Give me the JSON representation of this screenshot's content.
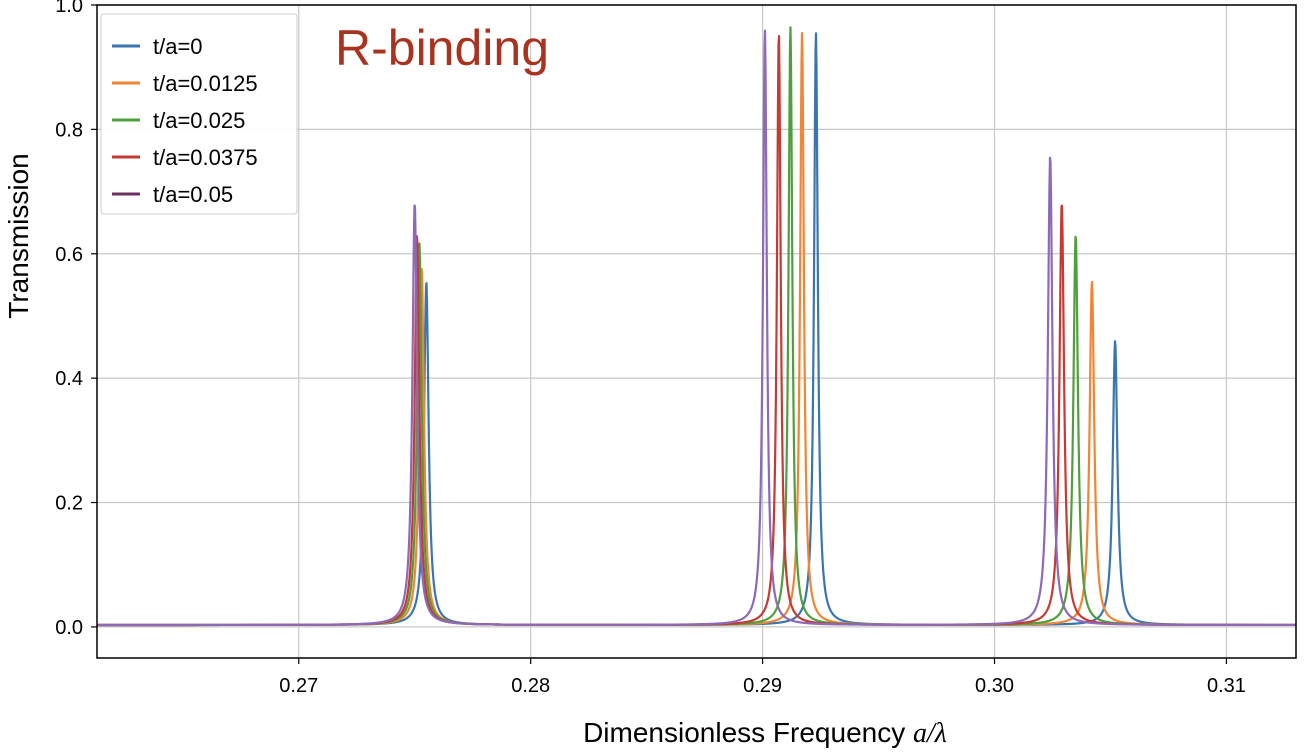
{
  "chart_data": {
    "type": "line",
    "xlabel": "Dimensionless Frequency a/λ",
    "xlabel_main": "Dimensionless Frequency ",
    "xlabel_math": "a/λ",
    "ylabel": "Transmission",
    "xlim": [
      0.2613,
      0.313
    ],
    "ylim": [
      -0.05,
      1.0
    ],
    "xticks": [
      0.27,
      0.28,
      0.29,
      0.3,
      0.31
    ],
    "xtick_labels": [
      "0.27",
      "0.28",
      "0.29",
      "0.30",
      "0.31"
    ],
    "yticks": [
      0.0,
      0.2,
      0.4,
      0.6,
      0.8,
      1.0
    ],
    "ytick_labels": [
      "0.0",
      "0.2",
      "0.4",
      "0.6",
      "0.8",
      "1.0"
    ],
    "grid": true,
    "legend_position": "top-left",
    "annotation": {
      "text": "R-binding",
      "color": "#a8331f"
    },
    "series": [
      {
        "name": "t/a=0",
        "color": "#3b75af",
        "peaks": [
          {
            "x": 0.2755,
            "y": 0.555,
            "width": 0.00012
          },
          {
            "x": 0.2923,
            "y": 0.955,
            "width": 0.0001
          },
          {
            "x": 0.3052,
            "y": 0.46,
            "width": 0.00012
          }
        ]
      },
      {
        "name": "t/a=0.0125",
        "color": "#ef8636",
        "peaks": [
          {
            "x": 0.2753,
            "y": 0.578,
            "width": 0.00012
          },
          {
            "x": 0.2917,
            "y": 0.955,
            "width": 0.0001
          },
          {
            "x": 0.3042,
            "y": 0.555,
            "width": 0.00012
          }
        ]
      },
      {
        "name": "t/a=0.025",
        "color": "#519e3e",
        "peaks": [
          {
            "x": 0.2752,
            "y": 0.618,
            "width": 0.00012
          },
          {
            "x": 0.2912,
            "y": 0.965,
            "width": 0.0001
          },
          {
            "x": 0.3035,
            "y": 0.63,
            "width": 0.00012
          }
        ]
      },
      {
        "name": "t/a=0.0375",
        "color": "#c53a32",
        "peaks": [
          {
            "x": 0.2751,
            "y": 0.628,
            "width": 0.00012
          },
          {
            "x": 0.2907,
            "y": 0.955,
            "width": 0.0001
          },
          {
            "x": 0.3029,
            "y": 0.682,
            "width": 0.00012
          }
        ]
      },
      {
        "name": "t/a=0.05",
        "color": "#8d69b8",
        "legend_color": "#6b2f62",
        "peaks": [
          {
            "x": 0.275,
            "y": 0.682,
            "width": 0.00012
          },
          {
            "x": 0.2901,
            "y": 0.96,
            "width": 0.0001
          },
          {
            "x": 0.3024,
            "y": 0.757,
            "width": 0.00012
          }
        ]
      }
    ]
  }
}
